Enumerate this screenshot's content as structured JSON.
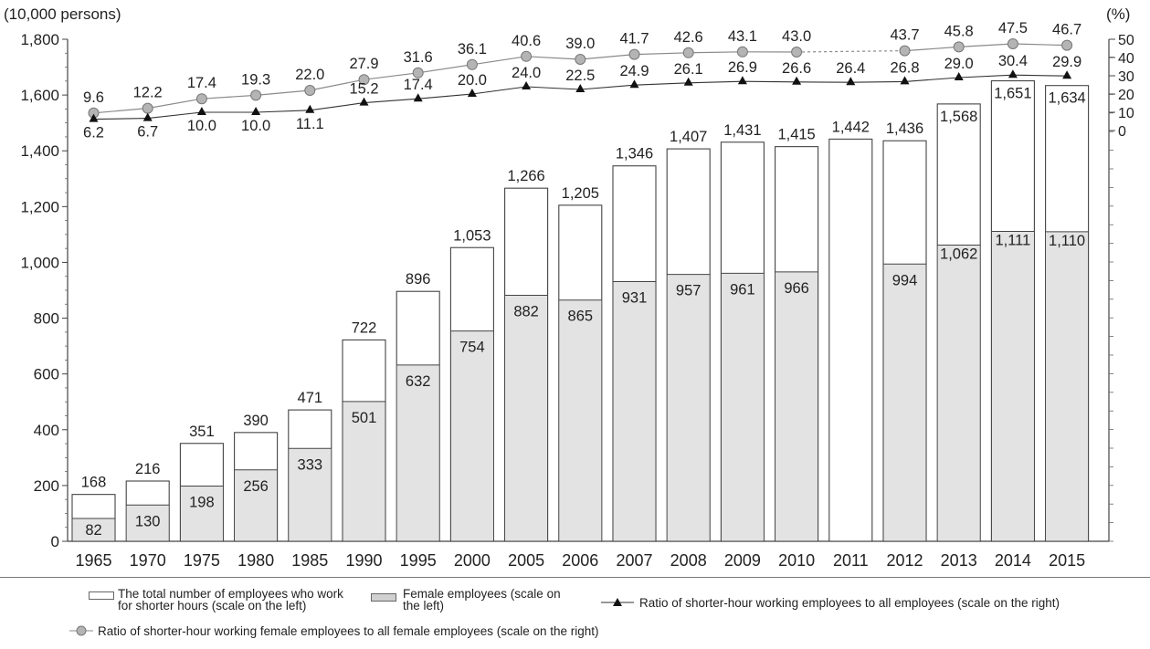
{
  "chart_data": {
    "type": "bar",
    "units": {
      "left": "(10,000 persons)",
      "right": "(%)"
    },
    "categories": [
      "1965",
      "1970",
      "1975",
      "1980",
      "1985",
      "1990",
      "1995",
      "2000",
      "2005",
      "2006",
      "2007",
      "2008",
      "2009",
      "2010",
      "2011",
      "2012",
      "2013",
      "2014",
      "2015"
    ],
    "total_labels": [
      "168",
      "216",
      "351",
      "390",
      "471",
      "722",
      "896",
      "1,053",
      "1,266",
      "1,205",
      "1,346",
      "1,407",
      "1,431",
      "1,415",
      "1,442",
      "1,436",
      "1,568",
      "1,651",
      "1,634"
    ],
    "female_labels": [
      "82",
      "130",
      "198",
      "256",
      "333",
      "501",
      "632",
      "754",
      "882",
      "865",
      "931",
      "957",
      "961",
      "966",
      null,
      "994",
      "1,062",
      "1,111",
      "1,110"
    ],
    "ratio_all_labels": [
      "6.2",
      "6.7",
      "10.0",
      "10.0",
      "11.1",
      "15.2",
      "17.4",
      "20.0",
      "24.0",
      "22.5",
      "24.9",
      "26.1",
      "26.9",
      "26.6",
      "26.4",
      "26.8",
      "29.0",
      "30.4",
      "29.9"
    ],
    "ratio_female_labels": [
      "9.6",
      "12.2",
      "17.4",
      "19.3",
      "22.0",
      "27.9",
      "31.6",
      "36.1",
      "40.6",
      "39.0",
      "41.7",
      "42.6",
      "43.1",
      "43.0",
      null,
      "43.7",
      "45.8",
      "47.5",
      "46.7"
    ],
    "series": [
      {
        "name": "The total number of employees who work for shorter hours (scale on the left)",
        "kind": "bar",
        "axis": "left",
        "color": "#ffffff",
        "values": [
          168,
          216,
          351,
          390,
          471,
          722,
          896,
          1053,
          1266,
          1205,
          1346,
          1407,
          1431,
          1415,
          1442,
          1436,
          1568,
          1651,
          1634
        ]
      },
      {
        "name": "Female employees (scale on the left)",
        "kind": "bar",
        "axis": "left",
        "color": "#e3e3e3",
        "values": [
          82,
          130,
          198,
          256,
          333,
          501,
          632,
          754,
          882,
          865,
          931,
          957,
          961,
          966,
          null,
          994,
          1062,
          1111,
          1110
        ]
      },
      {
        "name": "Ratio of shorter-hour working employees to all employees (scale on the right)",
        "kind": "line",
        "axis": "right",
        "marker": "triangle",
        "color": "#222222",
        "values": [
          6.2,
          6.7,
          10.0,
          10.0,
          11.1,
          15.2,
          17.4,
          20.0,
          24.0,
          22.5,
          24.9,
          26.1,
          26.9,
          26.6,
          26.4,
          26.8,
          29.0,
          30.4,
          29.9
        ]
      },
      {
        "name": "Ratio of shorter-hour working female employees to all female employees (scale on the right)",
        "kind": "line",
        "axis": "right",
        "marker": "circle",
        "color": "#999999",
        "values": [
          9.6,
          12.2,
          17.4,
          19.3,
          22.0,
          27.9,
          31.6,
          36.1,
          40.6,
          39.0,
          41.7,
          42.6,
          43.1,
          43.0,
          null,
          43.7,
          45.8,
          47.5,
          46.7
        ]
      }
    ],
    "ylim_left": [
      0,
      1800
    ],
    "yticks_left": [
      "0",
      "200",
      "400",
      "600",
      "800",
      "1,000",
      "1,200",
      "1,400",
      "1,600",
      "1,800"
    ],
    "ylim_right": [
      0,
      50
    ],
    "yticks_right": [
      "0",
      "10",
      "20",
      "30",
      "40",
      "50"
    ],
    "grid": false,
    "legend_position": "bottom"
  },
  "legend": {
    "total": "The total number of employees who work\nfor shorter hours (scale on the left)",
    "female": "Female employees (scale on\nthe left)",
    "ratio_all": "Ratio of shorter-hour working employees to all employees (scale on the right)",
    "ratio_female": "Ratio of shorter-hour working female employees to all female employees (scale on the right)"
  }
}
